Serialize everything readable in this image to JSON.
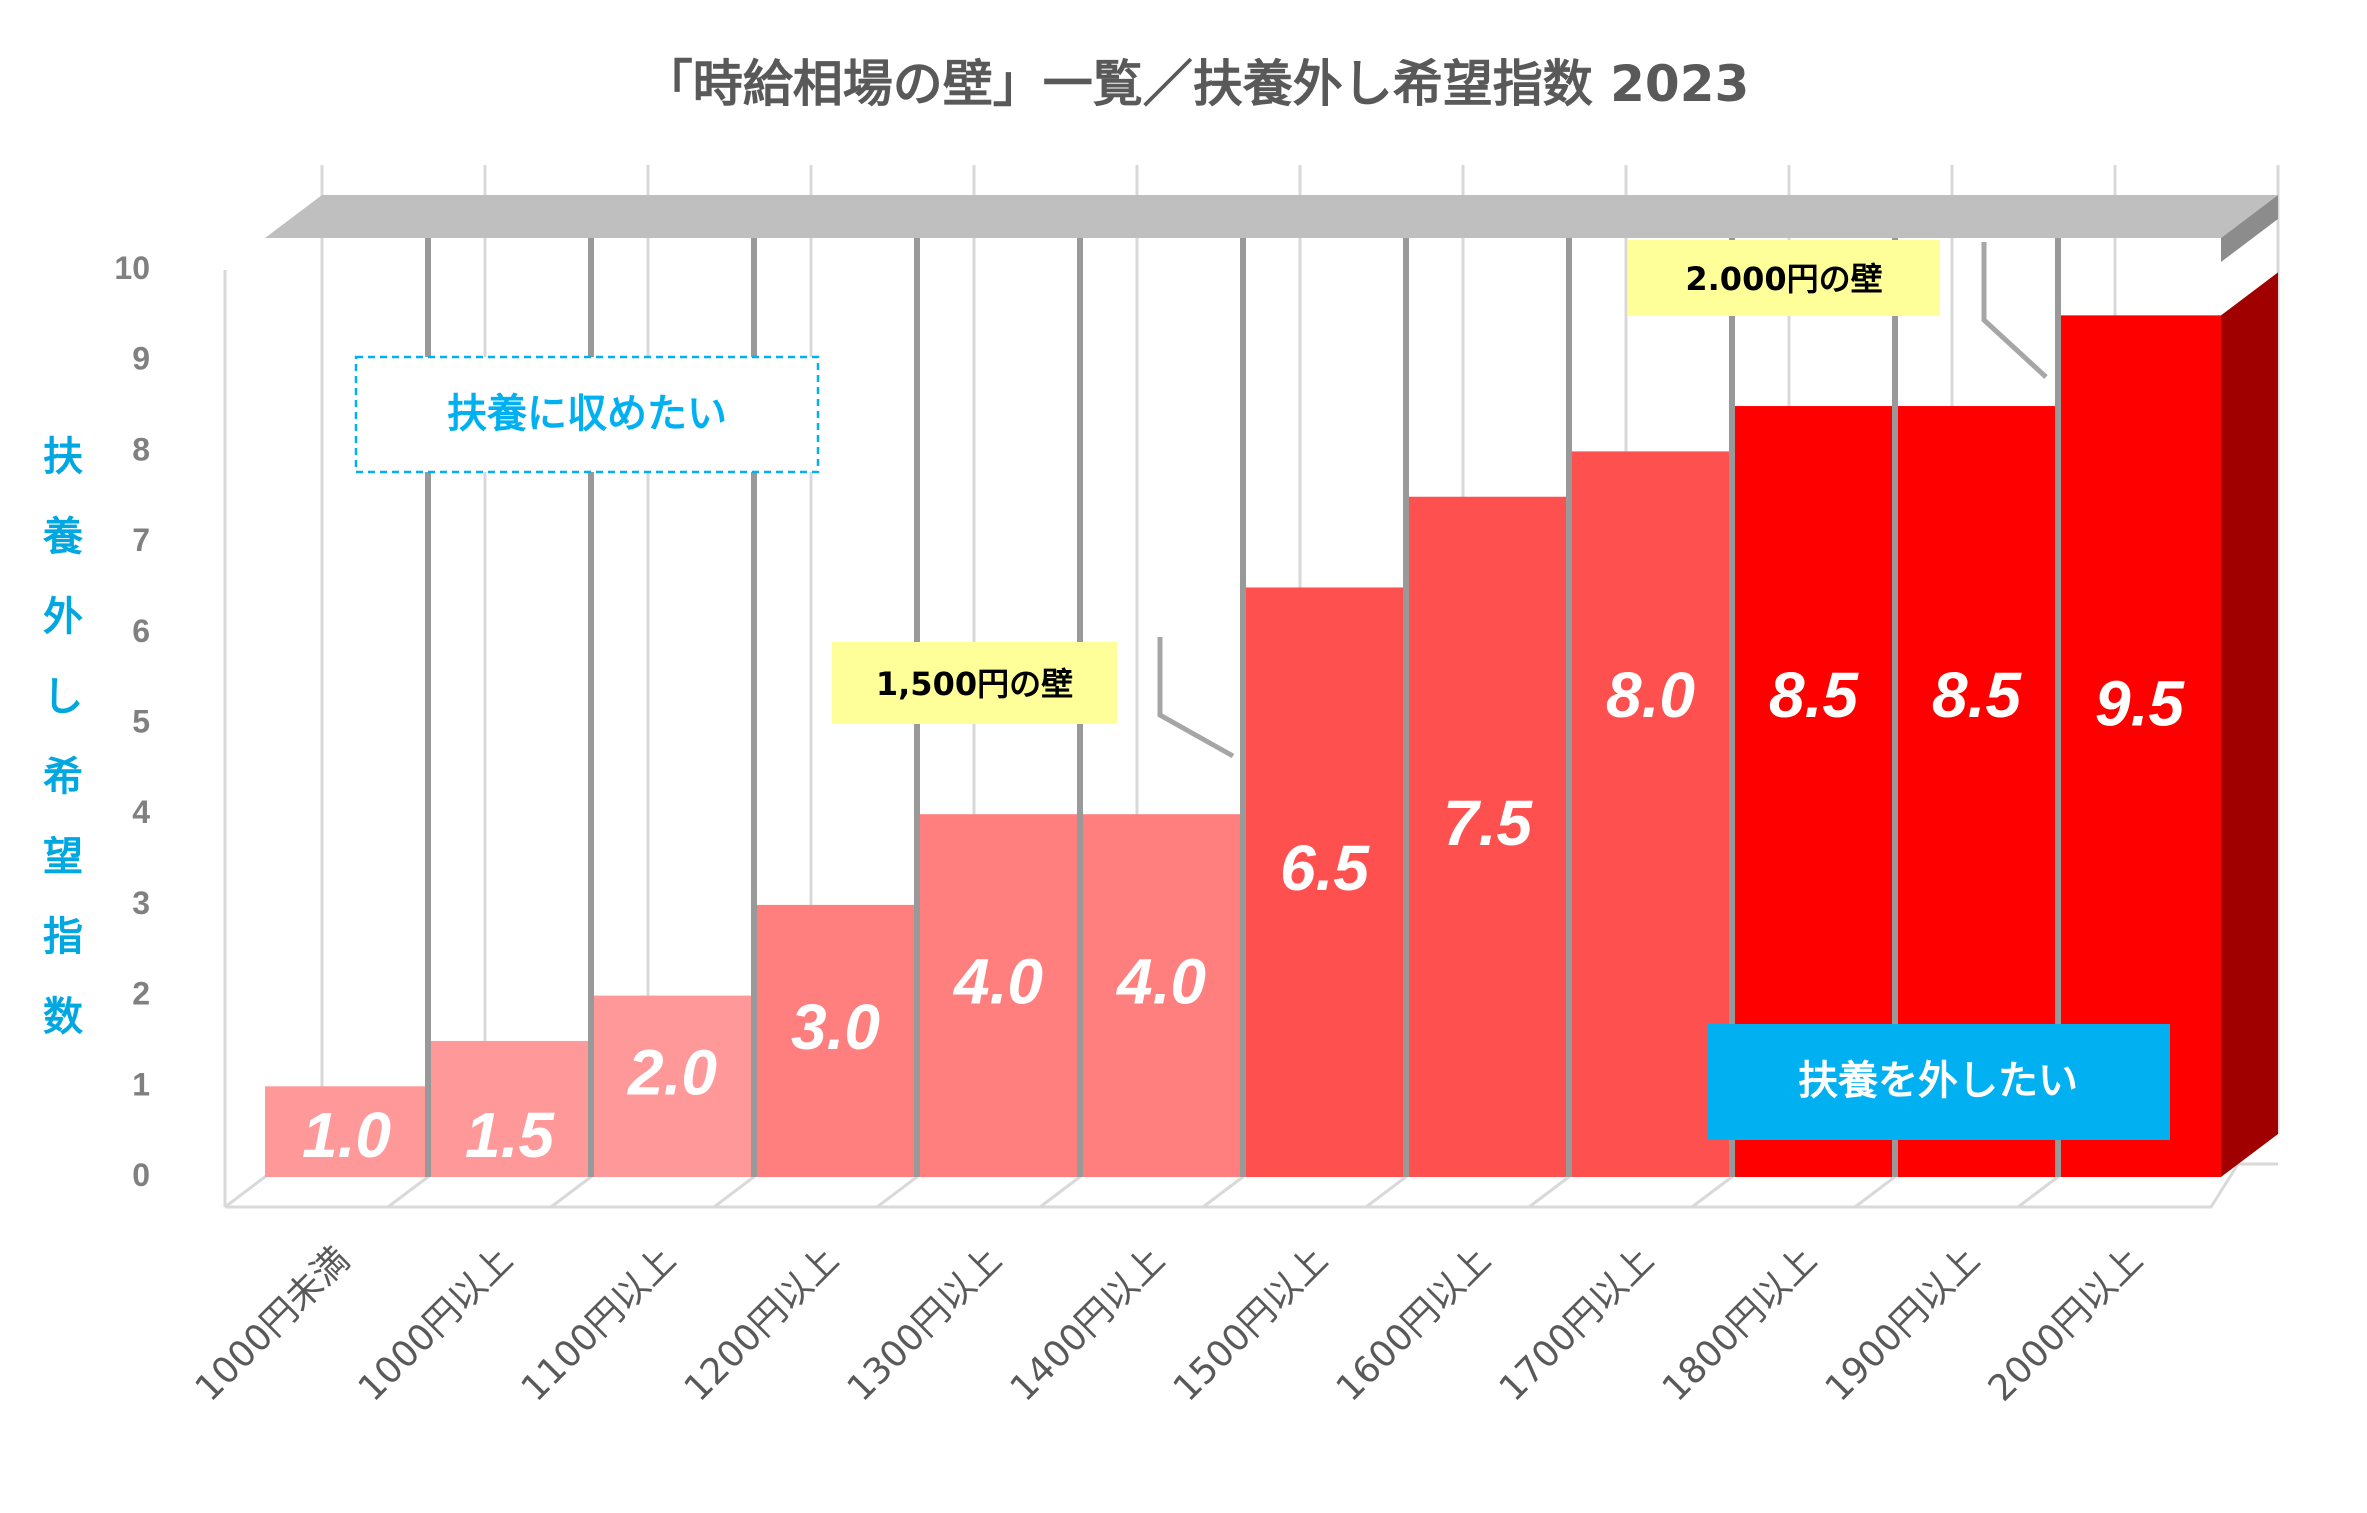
{
  "chart_data": {
    "type": "bar",
    "title": "「時給相場の壁」一覧／扶養外し希望指数 2023",
    "ylabel": "扶養外し希望指数",
    "xlabel": "",
    "ylim": [
      0,
      10
    ],
    "yticks": [
      "0",
      "1",
      "2",
      "3",
      "4",
      "5",
      "6",
      "7",
      "8",
      "9",
      "10"
    ],
    "categories": [
      "1000円未満",
      "1000円以上",
      "1100円以上",
      "1200円以上",
      "1300円以上",
      "1400円以上",
      "1500円以上",
      "1600円以上",
      "1700円以上",
      "1800円以上",
      "1900円以上",
      "2000円以上"
    ],
    "values": [
      1.0,
      1.5,
      2.0,
      3.0,
      4.0,
      4.0,
      6.5,
      7.5,
      8.0,
      8.5,
      8.5,
      9.5
    ],
    "value_labels": [
      "1.0",
      "1.5",
      "2.0",
      "3.0",
      "4.0",
      "4.0",
      "6.5",
      "7.5",
      "8.0",
      "8.5",
      "8.5",
      "9.5"
    ],
    "bar_colors": [
      "#ff9999",
      "#ff9999",
      "#ff9999",
      "#ff7f7f",
      "#ff7f7f",
      "#ff7f7f",
      "#ff5050",
      "#ff5050",
      "#ff5050",
      "#ff0000",
      "#ff0000",
      "#ff0000"
    ],
    "annotations": [
      {
        "text": "1,500円の壁",
        "near": "1500円以上"
      },
      {
        "text": "2.000円の壁",
        "near": "2000円以上"
      }
    ],
    "callouts": {
      "top_left": "扶養に収めたい",
      "bottom_right": "扶養を外したい"
    },
    "colors": {
      "axis_label": "#00a7e1",
      "wall_label_bg": "#ffff99",
      "callout_bg": "#00b0f0",
      "right_wall": "#a00000",
      "top_shelf": "#bfbfbf",
      "divider": "#999999"
    }
  }
}
